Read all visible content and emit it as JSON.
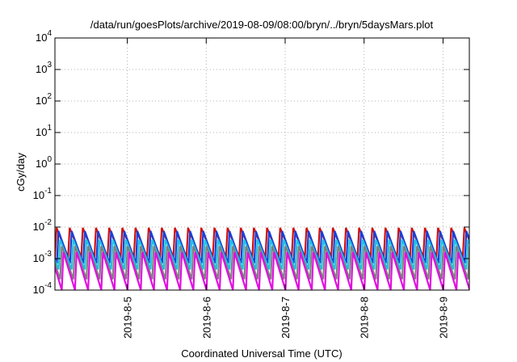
{
  "chart_data": {
    "type": "line",
    "title": "/data/run/goesPlots/archive/2019-08-09/08:00/bryn/../bryn/5daysMars.plot",
    "xlabel": "Coordinated Universal Time (UTC)",
    "ylabel": "cGy/day",
    "y_scale": "log",
    "ylim": [
      0.0001,
      10000
    ],
    "y_ticks": [
      {
        "value": 0.0001,
        "base": "10",
        "exp": "-4"
      },
      {
        "value": 0.001,
        "base": "10",
        "exp": "-3"
      },
      {
        "value": 0.01,
        "base": "10",
        "exp": "-2"
      },
      {
        "value": 0.1,
        "base": "10",
        "exp": "-1"
      },
      {
        "value": 1,
        "base": "10",
        "exp": "0"
      },
      {
        "value": 10,
        "base": "10",
        "exp": "1"
      },
      {
        "value": 100,
        "base": "10",
        "exp": "2"
      },
      {
        "value": 1000,
        "base": "10",
        "exp": "3"
      },
      {
        "value": 10000,
        "base": "10",
        "exp": "4"
      }
    ],
    "xlim": [
      "2019-08-04 02:00",
      "2019-08-09 08:00"
    ],
    "x_ticks": [
      "2019-8-5",
      "2019-8-6",
      "2019-8-7",
      "2019-8-8",
      "2019-8-9"
    ],
    "grid": true,
    "legend": "none",
    "sawtooth": {
      "period_hours": 4,
      "phase_shift_hours": 0.5,
      "comment_on_shape": "each trace rises sharply then decays over each period"
    },
    "series": [
      {
        "color": "#d01010",
        "peak": 0.0095,
        "trough": 0.0011,
        "offset_hours": 0
      },
      {
        "color": "#1a3fd6",
        "peak": 0.0075,
        "trough": 0.0007,
        "offset_hours": 0.6
      },
      {
        "color": "#20c0e0",
        "peak": 0.004,
        "trough": 0.00045,
        "offset_hours": 1.1
      },
      {
        "color": "#808080",
        "peak": 0.0025,
        "trough": 0.00022,
        "offset_hours": 1.6
      },
      {
        "color": "#e010e0",
        "peak": 0.0016,
        "trough": 0.0001,
        "offset_hours": 2.1
      }
    ]
  }
}
